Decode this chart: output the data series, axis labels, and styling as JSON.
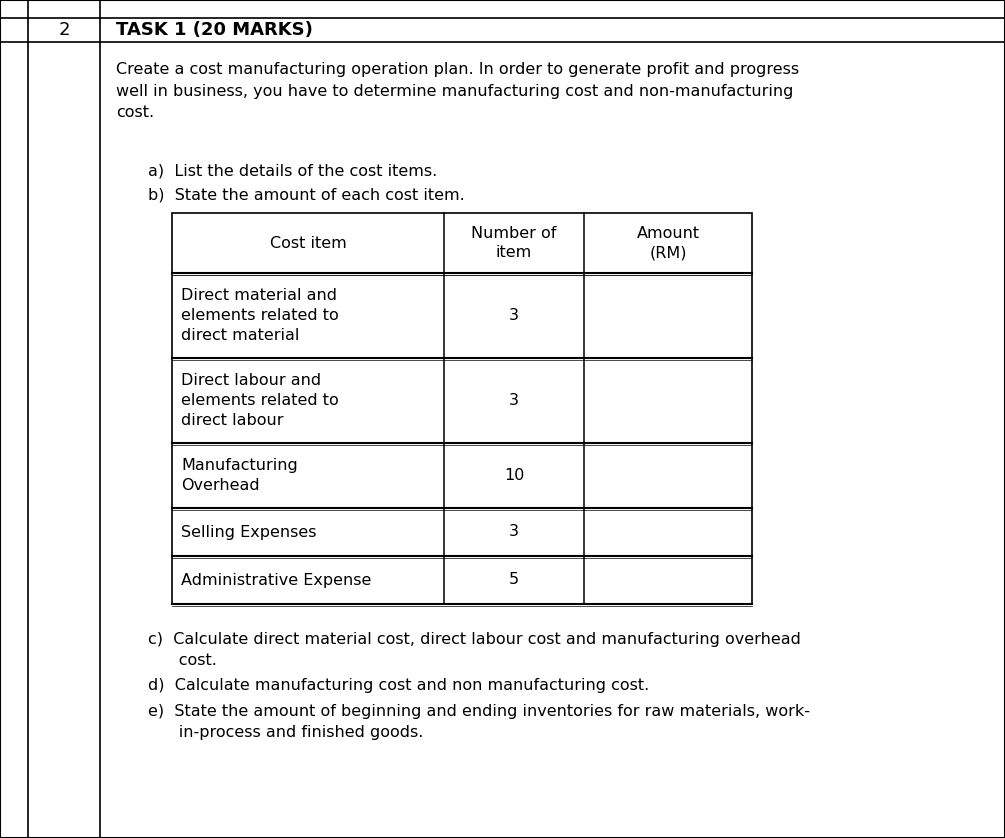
{
  "page_number": "2",
  "title": "TASK 1 (20 MARKS)",
  "intro_text": "Create a cost manufacturing operation plan. In order to generate profit and progress\nwell in business, you have to determine manufacturing cost and non-manufacturing\ncost.",
  "point_a": "a)  List the details of the cost items.",
  "point_b": "b)  State the amount of each cost item.",
  "table_headers": [
    "Cost item",
    "Number of\nitem",
    "Amount\n(RM)"
  ],
  "table_rows": [
    [
      "Direct material and\nelements related to\ndirect material",
      "3",
      ""
    ],
    [
      "Direct labour and\nelements related to\ndirect labour",
      "3",
      ""
    ],
    [
      "Manufacturing\nOverhead",
      "10",
      ""
    ],
    [
      "Selling Expenses",
      "3",
      ""
    ],
    [
      "Administrative Expense",
      "5",
      ""
    ]
  ],
  "point_c": "c)  Calculate direct material cost, direct labour cost and manufacturing overhead\n      cost.",
  "point_d": "d)  Calculate manufacturing cost and non manufacturing cost.",
  "point_e": "e)  State the amount of beginning and ending inventories for raw materials, work-\n      in-process and finished goods.",
  "bg_color": "#ffffff",
  "border_color": "#000000",
  "text_color": "#000000",
  "line_color": "#555555",
  "fs_title": 13,
  "fs_body": 11.5,
  "fs_num": 13
}
